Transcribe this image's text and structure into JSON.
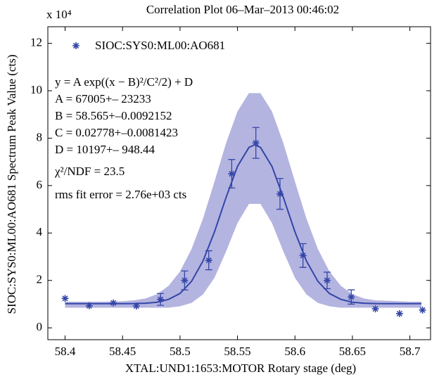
{
  "chart_data": {
    "type": "scatter",
    "title": "Correlation Plot 06–Mar–2013 00:46:02",
    "xlabel": "XTAL:UND1:1653:MOTOR Rotary stage (deg)",
    "ylabel": "SIOC:SYS0:ML00:AO681 Spectrum Peak Value (cts)",
    "y_multiplier": "x 10⁴",
    "xlim": [
      58.385,
      58.718
    ],
    "ylim": [
      -0.5,
      12.7
    ],
    "xticks": [
      58.4,
      58.45,
      58.5,
      58.55,
      58.6,
      58.65,
      58.7
    ],
    "yticks": [
      0,
      2,
      4,
      6,
      8,
      10,
      12
    ],
    "legend": "upper left",
    "series": [
      {
        "name": "SIOC:SYS0:ML00:AO681",
        "color": "#3346a8",
        "x": [
          58.4,
          58.421,
          58.442,
          58.462,
          58.483,
          58.504,
          58.525,
          58.545,
          58.566,
          58.587,
          58.607,
          58.628,
          58.649,
          58.67,
          58.691,
          58.711
        ],
        "values": [
          1.24,
          0.93,
          1.05,
          0.92,
          1.2,
          2.0,
          2.85,
          6.5,
          7.8,
          5.65,
          3.05,
          2.0,
          1.3,
          0.8,
          0.6,
          0.75
        ],
        "errors": [
          null,
          null,
          null,
          null,
          0.25,
          0.4,
          0.4,
          0.6,
          0.65,
          0.65,
          0.5,
          0.35,
          0.3,
          null,
          null,
          null
        ]
      }
    ],
    "fit": {
      "color": "#3346a8",
      "x": [
        58.4,
        58.41,
        58.42,
        58.43,
        58.44,
        58.45,
        58.46,
        58.47,
        58.48,
        58.49,
        58.5,
        58.51,
        58.52,
        58.53,
        58.54,
        58.55,
        58.56,
        58.565,
        58.57,
        58.58,
        58.59,
        58.6,
        58.61,
        58.62,
        58.63,
        58.64,
        58.65,
        58.66,
        58.67,
        58.68,
        58.69,
        58.7,
        58.71
      ],
      "values": [
        1.02,
        1.02,
        1.02,
        1.02,
        1.02,
        1.021,
        1.025,
        1.04,
        1.08,
        1.2,
        1.45,
        1.96,
        2.82,
        4.05,
        5.49,
        6.81,
        7.61,
        7.72,
        7.61,
        6.81,
        5.49,
        4.05,
        2.82,
        1.96,
        1.45,
        1.2,
        1.08,
        1.04,
        1.025,
        1.021,
        1.02,
        1.02,
        1.02
      ]
    },
    "band": {
      "color": "#b4b4e0",
      "x": [
        58.4,
        58.43,
        58.45,
        58.46,
        58.47,
        58.48,
        58.49,
        58.5,
        58.51,
        58.52,
        58.53,
        58.54,
        58.55,
        58.56,
        58.57,
        58.58,
        58.59,
        58.6,
        58.61,
        58.62,
        58.63,
        58.64,
        58.65,
        58.66,
        58.67,
        58.7,
        58.71
      ],
      "upper": [
        1.1,
        1.1,
        1.12,
        1.16,
        1.24,
        1.42,
        1.77,
        2.38,
        3.32,
        4.61,
        6.17,
        7.78,
        9.13,
        9.9,
        9.9,
        9.13,
        7.78,
        6.17,
        4.61,
        3.32,
        2.38,
        1.77,
        1.42,
        1.24,
        1.16,
        1.1,
        1.1
      ],
      "lower": [
        0.85,
        0.85,
        0.85,
        0.85,
        0.85,
        0.85,
        0.85,
        0.91,
        1.05,
        1.41,
        2.11,
        3.21,
        4.42,
        5.23,
        5.23,
        4.42,
        3.21,
        2.11,
        1.41,
        1.05,
        0.91,
        0.85,
        0.85,
        0.85,
        0.85,
        0.85,
        0.85
      ]
    },
    "annotations": [
      "y = A exp((x − B)²/C²/2) + D",
      "A =   67005+–  23233",
      "B =  58.565+–0.0092152",
      "C = 0.02778+–0.0081423",
      "D =   10197+–  948.44",
      "χ²/NDF =  23.5",
      "rms fit error = 2.76e+03 cts"
    ]
  }
}
